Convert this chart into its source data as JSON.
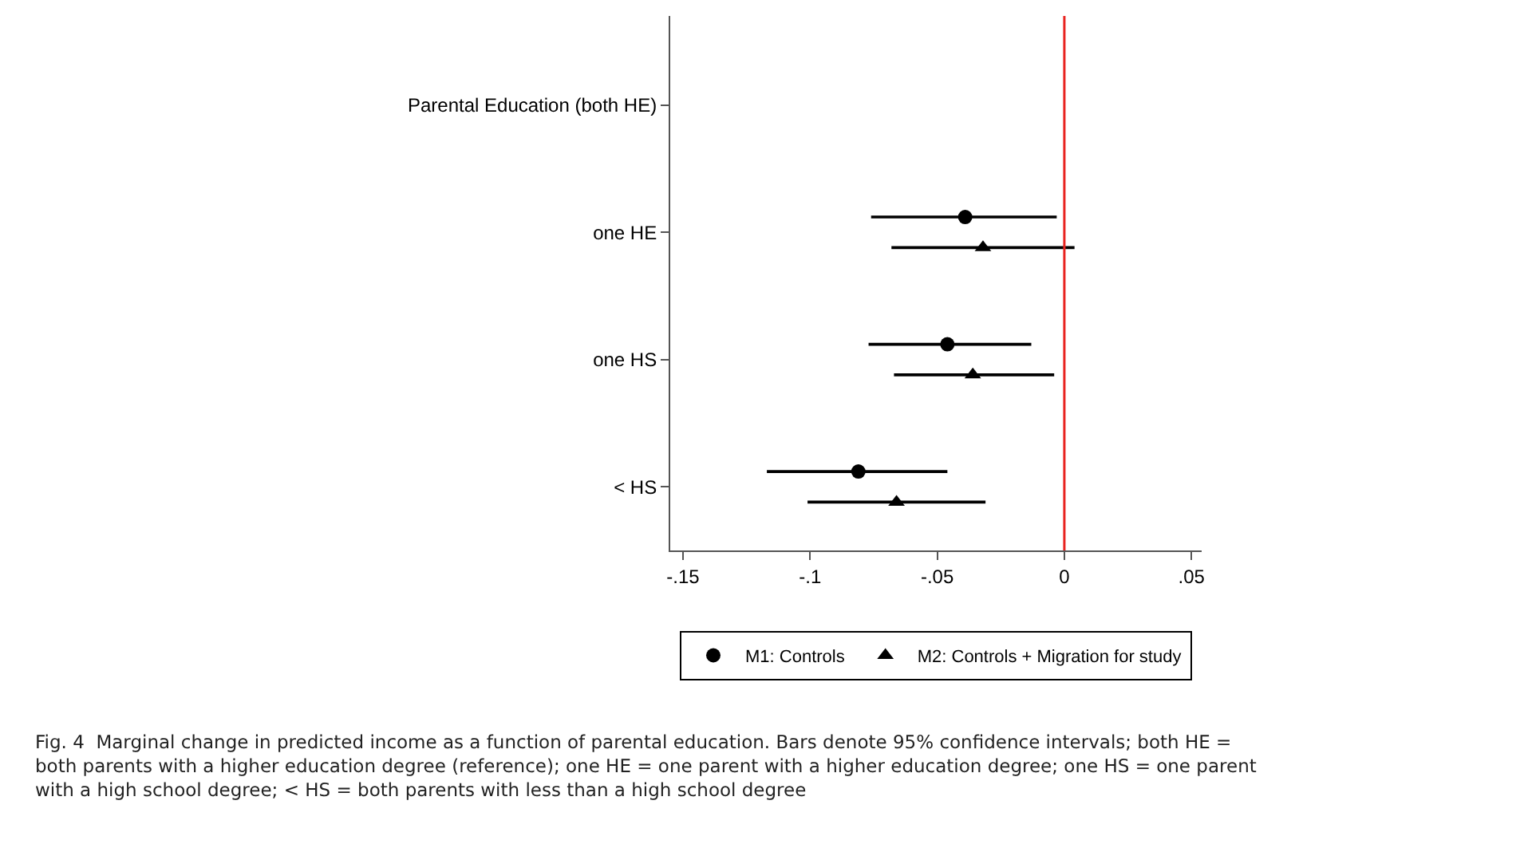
{
  "chart_data": {
    "type": "scatter",
    "categories": [
      "Parental Education (both HE)",
      "one HE",
      "one HS",
      "< HS"
    ],
    "series": [
      {
        "name": "M1: Controls",
        "color": "#000000",
        "marker": "circle",
        "values": [
          null,
          -0.039,
          -0.046,
          -0.081
        ],
        "errors": [
          null,
          [
            -0.076,
            -0.003
          ],
          [
            -0.077,
            -0.013
          ],
          [
            -0.117,
            -0.046
          ]
        ]
      },
      {
        "name": "M2: Controls + Migration for study",
        "color": "#000000",
        "marker": "triangle",
        "values": [
          null,
          -0.032,
          -0.036,
          -0.066
        ],
        "errors": [
          null,
          [
            -0.068,
            0.004
          ],
          [
            -0.067,
            -0.004
          ],
          [
            -0.101,
            -0.031
          ]
        ]
      }
    ],
    "orientation": "horizontal",
    "xlim": [
      -0.155,
      0.054
    ],
    "xticks": [
      {
        "value": -0.15,
        "label": "-.15"
      },
      {
        "value": -0.1,
        "label": "-.1"
      },
      {
        "value": -0.05,
        "label": "-.05"
      },
      {
        "value": 0,
        "label": "0"
      },
      {
        "value": 0.05,
        "label": ".05"
      }
    ],
    "ref_lines": [
      {
        "axis": "x",
        "value": 0,
        "label": null,
        "color": "#e8231f"
      }
    ],
    "legend": "bottom",
    "annotations": [
      "Fig. 4  Marginal change in predicted income as a function of parental education. Bars denote 95% confidence intervals; both HE = both parents with a higher education degree (reference); one HE = one parent with a higher education degree; one HS = one parent with a high school degree; < HS = both parents with less than a high school degree"
    ]
  }
}
